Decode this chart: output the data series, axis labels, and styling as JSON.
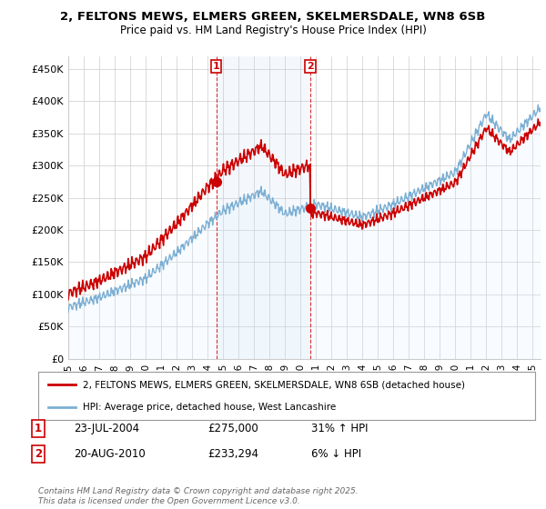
{
  "title_line1": "2, FELTONS MEWS, ELMERS GREEN, SKELMERSDALE, WN8 6SB",
  "title_line2": "Price paid vs. HM Land Registry's House Price Index (HPI)",
  "ylabel_ticks": [
    "£0",
    "£50K",
    "£100K",
    "£150K",
    "£200K",
    "£250K",
    "£300K",
    "£350K",
    "£400K",
    "£450K"
  ],
  "ytick_values": [
    0,
    50000,
    100000,
    150000,
    200000,
    250000,
    300000,
    350000,
    400000,
    450000
  ],
  "xlim_start": 1995,
  "xlim_end": 2025.5,
  "ylim_min": 0,
  "ylim_max": 470000,
  "sale1_date": 2004.55,
  "sale1_price": 275000,
  "sale2_date": 2010.63,
  "sale2_price": 233294,
  "line_color_price": "#cc0000",
  "line_color_hpi": "#7bafd4",
  "hpi_fill_color": "#ddeeff",
  "grid_color": "#cccccc",
  "background_color": "#ffffff",
  "legend_label_price": "2, FELTONS MEWS, ELMERS GREEN, SKELMERSDALE, WN8 6SB (detached house)",
  "legend_label_hpi": "HPI: Average price, detached house, West Lancashire",
  "footnote": "Contains HM Land Registry data © Crown copyright and database right 2025.\nThis data is licensed under the Open Government Licence v3.0.",
  "sale_info": [
    {
      "num": "1",
      "date": "23-JUL-2004",
      "price": "£275,000",
      "hpi": "31% ↑ HPI"
    },
    {
      "num": "2",
      "date": "20-AUG-2010",
      "price": "£233,294",
      "hpi": "6% ↓ HPI"
    }
  ]
}
